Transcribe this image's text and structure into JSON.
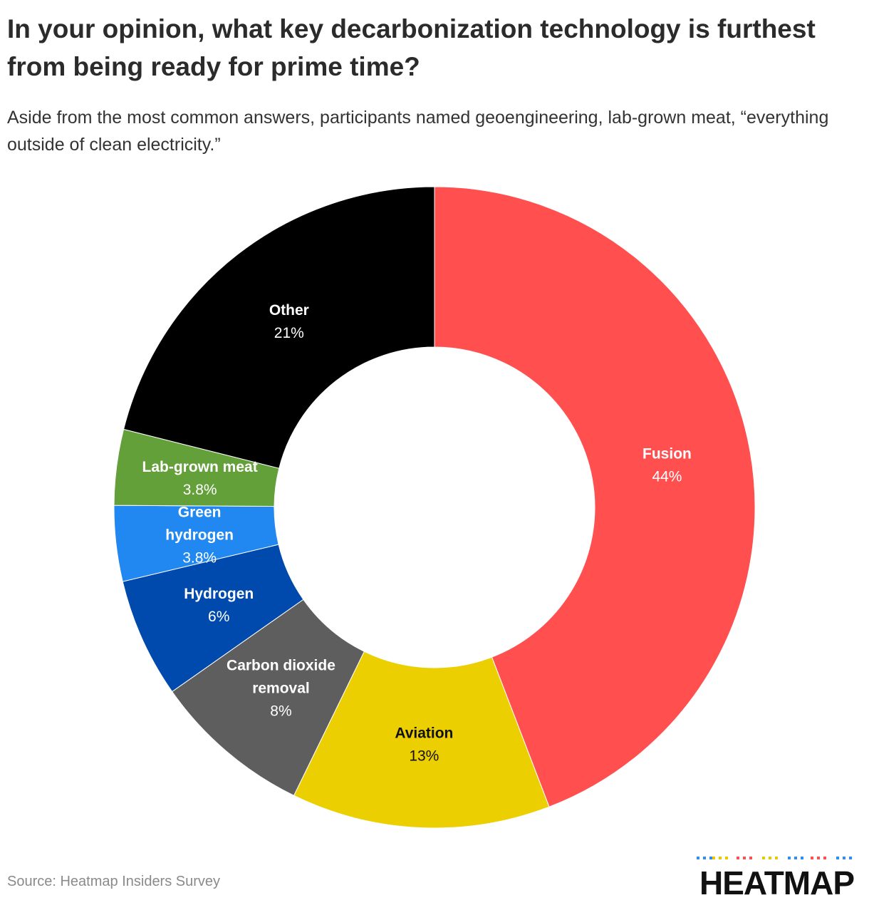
{
  "title": "In your opinion, what key decarbonization technology is furthest from being ready for prime time?",
  "subtitle": "Aside from the most common answers, participants named geoengineering, lab-grown meat, “everything outside of clean electricity.”",
  "source": "Source: Heatmap Insiders Survey",
  "brand": {
    "name": "HEATMAP",
    "dot_colors": [
      "#2f8ef0",
      "#e8c800",
      "#ff4f4f",
      "#e8c800",
      "#2f8ef0",
      "#ff4f4f",
      "#2f8ef0"
    ]
  },
  "chart_data": {
    "type": "pie",
    "style": "donut",
    "start": "top",
    "direction": "clockwise",
    "slices": [
      {
        "label": [
          "Fusion"
        ],
        "value": 44,
        "display": "44%",
        "color": "#ff4f4f",
        "text_color": "#ffffff"
      },
      {
        "label": [
          "Aviation"
        ],
        "value": 13,
        "display": "13%",
        "color": "#ebcf00",
        "text_color": "#111111"
      },
      {
        "label": [
          "Carbon dioxide",
          "removal"
        ],
        "value": 8,
        "display": "8%",
        "color": "#5e5e5e",
        "text_color": "#ffffff"
      },
      {
        "label": [
          "Hydrogen"
        ],
        "value": 6,
        "display": "6%",
        "color": "#004aad",
        "text_color": "#ffffff"
      },
      {
        "label": [
          "Green",
          "hydrogen"
        ],
        "value": 3.8,
        "display": "3.8%",
        "color": "#2088f0",
        "text_color": "#ffffff"
      },
      {
        "label": [
          "Lab-grown meat"
        ],
        "value": 3.8,
        "display": "3.8%",
        "color": "#64a03a",
        "text_color": "#ffffff"
      },
      {
        "label": [
          "Other"
        ],
        "value": 21,
        "display": "21%",
        "color": "#000000",
        "text_color": "#ffffff"
      }
    ]
  }
}
